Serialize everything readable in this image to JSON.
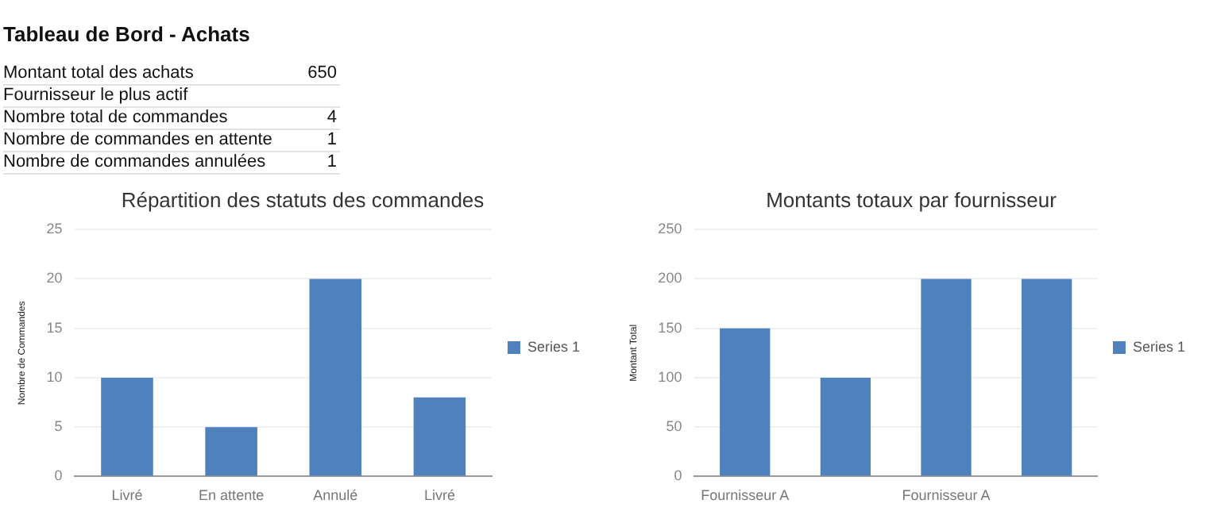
{
  "chart_data": [
    {
      "type": "other",
      "title": "Tableau de Bord - Achats",
      "categories": [
        "Montant total des achats",
        "Fournisseur le plus actif",
        "Nombre total de commandes",
        "Nombre de commandes en attente",
        "Nombre de commandes annulées"
      ],
      "values": [
        650,
        null,
        4,
        1,
        1
      ],
      "data_labels": true
    },
    {
      "type": "bar",
      "title": "Répartition des statuts des commandes",
      "ylabel": "Nombre de Commandes",
      "categories": [
        "Livré",
        "En attente",
        "Annulé",
        "Livré"
      ],
      "series": [
        {
          "name": "Series 1",
          "color": "#4f81bd",
          "values": [
            10,
            5,
            20,
            8
          ]
        }
      ],
      "ylim": [
        0,
        25
      ],
      "yticks": [
        0,
        5,
        10,
        15,
        20,
        25
      ],
      "grid": "y",
      "legend": "right"
    },
    {
      "type": "bar",
      "title": "Montants totaux par fournisseur",
      "ylabel": "Montant Total",
      "categories": [
        "Fournisseur A",
        null,
        "Fournisseur A",
        null
      ],
      "series": [
        {
          "name": "Series 1",
          "color": "#4f81bd",
          "values": [
            150,
            100,
            200,
            200
          ]
        }
      ],
      "ylim": [
        0,
        250
      ],
      "yticks": [
        0,
        50,
        100,
        150,
        200,
        250
      ],
      "grid": "y",
      "legend": "right"
    }
  ]
}
